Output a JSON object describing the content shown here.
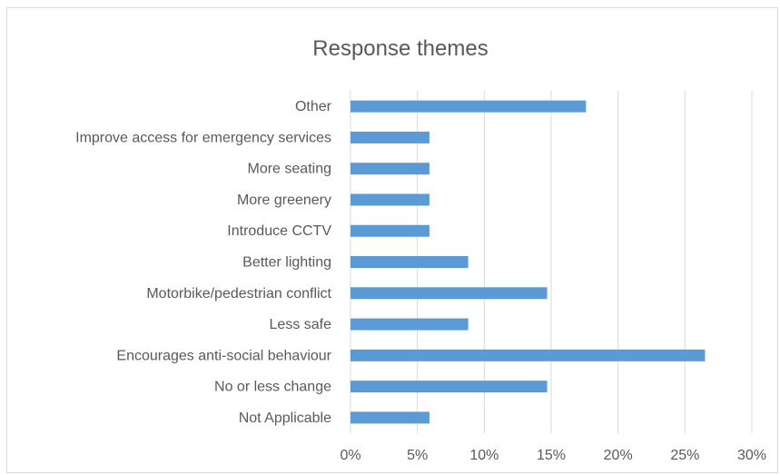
{
  "chart_data": {
    "type": "bar",
    "orientation": "horizontal",
    "title": "Response themes",
    "categories": [
      "Other",
      "Improve access for emergency services",
      "More seating",
      "More greenery",
      "Introduce CCTV",
      "Better lighting",
      "Motorbike/pedestrian conflict",
      "Less safe",
      "Encourages anti-social behaviour",
      "No or less change",
      "Not Applicable"
    ],
    "values": [
      17.6,
      5.9,
      5.9,
      5.9,
      5.9,
      8.8,
      14.7,
      8.8,
      26.5,
      14.7,
      5.9
    ],
    "value_unit": "%",
    "xlim": [
      0,
      30
    ],
    "xticks": [
      0,
      5,
      10,
      15,
      20,
      25,
      30
    ],
    "xtick_labels": [
      "0%",
      "5%",
      "10%",
      "15%",
      "20%",
      "25%",
      "30%"
    ],
    "xlabel": "",
    "ylabel": "",
    "grid": "vertical",
    "legend": "none",
    "bar_color": "#5b9bd5",
    "grid_color": "#d9d9d9"
  }
}
